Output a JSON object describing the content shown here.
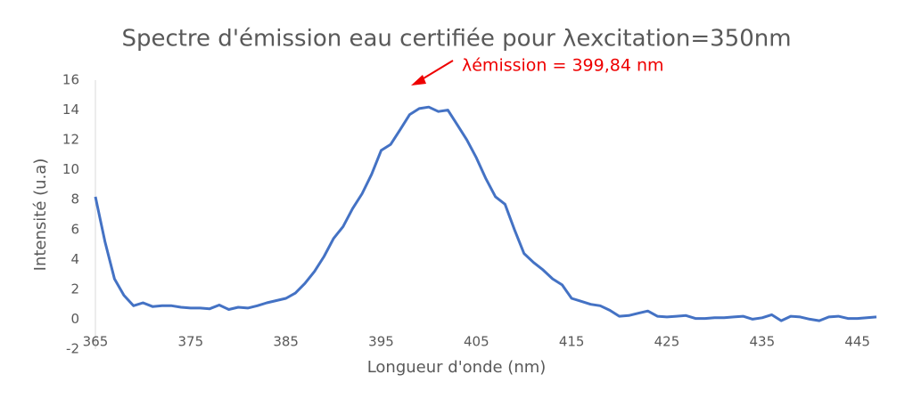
{
  "chart_data": {
    "type": "line",
    "title": "Spectre d'émission eau certifiée pour λexcitation=350nm",
    "annotation": "λémission  = 399,84 nm",
    "x_label": "Longueur d'onde (nm)",
    "y_label": "Intensité (u.a)",
    "color": "#4472c4",
    "x": [
      365,
      366,
      367,
      368,
      369,
      370,
      371,
      372,
      373,
      374,
      375,
      376,
      377,
      378,
      379,
      380,
      381,
      382,
      383,
      384,
      385,
      386,
      387,
      388,
      389,
      390,
      391,
      392,
      393,
      394,
      395,
      396,
      397,
      398,
      399,
      400,
      401,
      402,
      403,
      404,
      405,
      406,
      407,
      408,
      409,
      410,
      411,
      412,
      413,
      414,
      415,
      416,
      417,
      418,
      419,
      420,
      421,
      422,
      423,
      424,
      425,
      426,
      427,
      428,
      429,
      430,
      431,
      432,
      433,
      434,
      435,
      436,
      437,
      438,
      439,
      440,
      441,
      442,
      443,
      444,
      445,
      446,
      447
    ],
    "values": [
      8.2,
      5.2,
      2.7,
      1.6,
      0.9,
      1.1,
      0.85,
      0.9,
      0.9,
      0.8,
      0.75,
      0.75,
      0.7,
      0.95,
      0.65,
      0.8,
      0.75,
      0.9,
      1.1,
      1.25,
      1.4,
      1.75,
      2.4,
      3.2,
      4.2,
      5.4,
      6.2,
      7.4,
      8.4,
      9.7,
      11.3,
      11.7,
      12.7,
      13.7,
      14.1,
      14.2,
      13.9,
      14.0,
      13.0,
      12.0,
      10.8,
      9.4,
      8.2,
      7.7,
      6.0,
      4.4,
      3.8,
      3.3,
      2.7,
      2.3,
      1.4,
      1.2,
      1.0,
      0.9,
      0.6,
      0.2,
      0.25,
      0.4,
      0.55,
      0.2,
      0.15,
      0.2,
      0.25,
      0.05,
      0.05,
      0.1,
      0.1,
      0.15,
      0.2,
      0.0,
      0.1,
      0.3,
      -0.1,
      0.2,
      0.15,
      0.0,
      -0.1,
      0.15,
      0.2,
      0.05,
      0.05,
      0.1,
      0.15
    ],
    "xlim": [
      365,
      447
    ],
    "xticks": [
      365,
      375,
      385,
      395,
      405,
      415,
      425,
      435,
      445
    ],
    "ylim": [
      -2,
      16
    ],
    "yticks": [
      -2,
      0,
      2,
      4,
      6,
      8,
      10,
      12,
      14,
      16
    ],
    "grid": false
  }
}
